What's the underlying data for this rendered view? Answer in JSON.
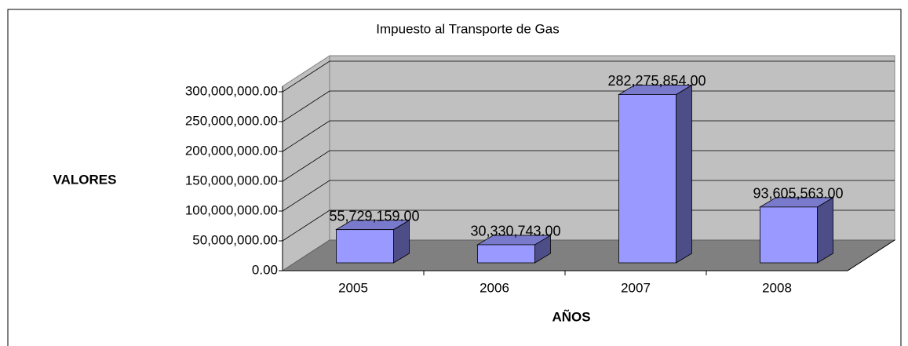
{
  "chart_data": {
    "type": "bar3d",
    "title": "Impuesto al Transporte de Gas",
    "x_label": "AÑOS",
    "y_label": "VALORES",
    "categories": [
      "2005",
      "2006",
      "2007",
      "2008"
    ],
    "values": [
      55729159,
      30330743,
      282275854,
      93605563
    ],
    "value_labels": [
      "55,729,159.00",
      "30,330,743.00",
      "282,275,854.00",
      "93,605,563.00"
    ],
    "color": "#9999ff",
    "ylim": [
      0,
      300000000
    ],
    "yticks": [
      {
        "value": 0,
        "label": "0.00"
      },
      {
        "value": 50000000,
        "label": "50,000,000.00"
      },
      {
        "value": 100000000,
        "label": "100,000,000.00"
      },
      {
        "value": 150000000,
        "label": "150,000,000.00"
      },
      {
        "value": 200000000,
        "label": "200,000,000.00"
      },
      {
        "value": 250000000,
        "label": "250,000,000.00"
      },
      {
        "value": 300000000,
        "label": "300,000,000.00"
      }
    ],
    "grid": true
  }
}
